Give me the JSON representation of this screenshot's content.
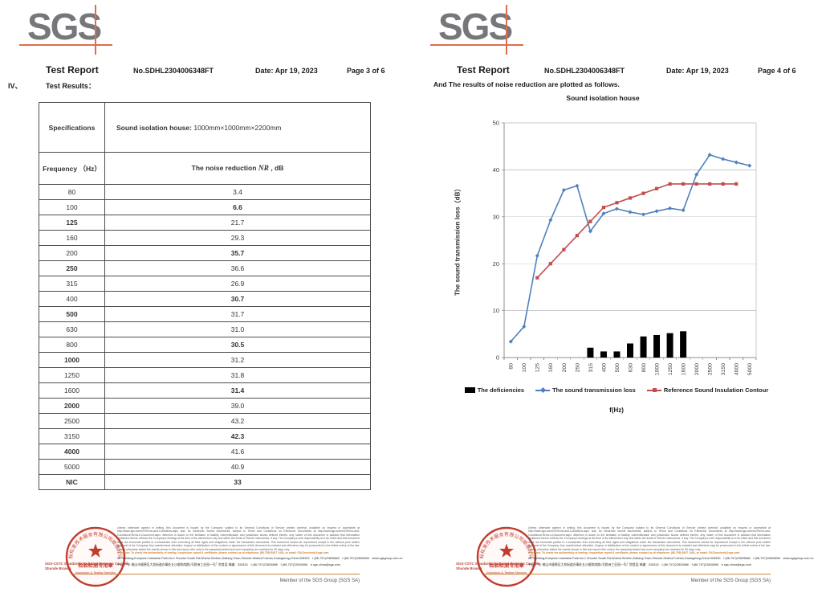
{
  "report": {
    "logo_text": "SGS",
    "title": "Test Report",
    "report_no": "No.SDHL2304006348FT",
    "date": "Date: Apr 19, 2023"
  },
  "page_left": {
    "page_label": "Page 3 of 6",
    "section_no": "IV、",
    "section_title": "Test Results：",
    "table": {
      "spec_label": "Specifications",
      "spec_value_bold": "Sound isolation house:",
      "spec_value_rest": " 1000mm×1000mm×2200mm",
      "freq_header": "Frequency （Hz）",
      "nr_prefix": "The noise reduction ",
      "nr_symbol": "NR",
      "nr_suffix": " , dB",
      "rows": [
        {
          "f": "80",
          "v": "3.4",
          "fb": false,
          "vb": false
        },
        {
          "f": "100",
          "v": "6.6",
          "fb": false,
          "vb": true
        },
        {
          "f": "125",
          "v": "21.7",
          "fb": true,
          "vb": false
        },
        {
          "f": "160",
          "v": "29.3",
          "fb": false,
          "vb": false
        },
        {
          "f": "200",
          "v": "35.7",
          "fb": false,
          "vb": true
        },
        {
          "f": "250",
          "v": "36.6",
          "fb": true,
          "vb": false
        },
        {
          "f": "315",
          "v": "26.9",
          "fb": false,
          "vb": false
        },
        {
          "f": "400",
          "v": "30.7",
          "fb": false,
          "vb": true
        },
        {
          "f": "500",
          "v": "31.7",
          "fb": true,
          "vb": false
        },
        {
          "f": "630",
          "v": "31.0",
          "fb": false,
          "vb": false
        },
        {
          "f": "800",
          "v": "30.5",
          "fb": false,
          "vb": true
        },
        {
          "f": "1000",
          "v": "31.2",
          "fb": true,
          "vb": false
        },
        {
          "f": "1250",
          "v": "31.8",
          "fb": false,
          "vb": false
        },
        {
          "f": "1600",
          "v": "31.4",
          "fb": false,
          "vb": true
        },
        {
          "f": "2000",
          "v": "39.0",
          "fb": true,
          "vb": false
        },
        {
          "f": "2500",
          "v": "43.2",
          "fb": false,
          "vb": false
        },
        {
          "f": "3150",
          "v": "42.3",
          "fb": false,
          "vb": true
        },
        {
          "f": "4000",
          "v": "41.6",
          "fb": true,
          "vb": false
        },
        {
          "f": "5000",
          "v": "40.9",
          "fb": false,
          "vb": false
        },
        {
          "f": "NIC",
          "v": "33",
          "fb": true,
          "vb": true
        }
      ]
    }
  },
  "page_right": {
    "page_label": "Page 4 of 6",
    "intro": "And The results of noise reduction are plotted as follows."
  },
  "chart_data": {
    "type": "line+bar",
    "title": "Sound isolation house",
    "xlabel": "f(Hz)",
    "ylabel": "The sound transmission loss（dB）",
    "ylim": [
      0,
      50
    ],
    "ytick_step": 10,
    "grid": "horizontal",
    "legend_position": "bottom",
    "categories": [
      "80",
      "100",
      "125",
      "160",
      "200",
      "250",
      "315",
      "400",
      "500",
      "630",
      "800",
      "1000",
      "1250",
      "1600",
      "2000",
      "2500",
      "3150",
      "4000",
      "5000"
    ],
    "series": [
      {
        "name": "The deficiencies",
        "type": "bar",
        "color": "#000000",
        "values": [
          null,
          null,
          null,
          null,
          null,
          null,
          2.1,
          1.3,
          1.3,
          3.0,
          4.5,
          4.8,
          5.2,
          5.6,
          null,
          null,
          null,
          null,
          null
        ]
      },
      {
        "name": "The sound transmission loss",
        "type": "line",
        "color": "#4f81bd",
        "marker": "diamond",
        "values": [
          3.4,
          6.6,
          21.7,
          29.3,
          35.7,
          36.6,
          26.9,
          30.7,
          31.7,
          31.0,
          30.5,
          31.2,
          31.8,
          31.4,
          39.0,
          43.2,
          42.3,
          41.6,
          40.9
        ]
      },
      {
        "name": "Reference Sound Insulation Contour",
        "type": "line",
        "color": "#c0504d",
        "marker": "square",
        "values": [
          null,
          null,
          17,
          20,
          23,
          26,
          29,
          32,
          33,
          34,
          35,
          36,
          37,
          37,
          37,
          37,
          37,
          37,
          null
        ]
      }
    ]
  },
  "footer": {
    "disclaimer": "Unless otherwise agreed in writing, this document is issued by the Company subject to its General Conditions of Service printed overleaf, available on request or accessible at http://www.sgs.com/en/Terms-and-Conditions.aspx and, for electronic format documents, subject to Terms and Conditions for Electronic Documents at http://www.sgs.com/en/Terms-and-Conditions/Terms-e-Document.aspx. Attention is drawn to the limitation of liability, indemnification and jurisdiction issues defined therein. Any holder of this document is advised that information contained hereon reflects the Company's findings at the time of its intervention only and within the limits of Client's instructions, if any. The Company's sole responsibility is to its Client and this document does not exonerate parties to a transaction from exercising all their rights and obligations under the transaction documents. This document cannot be reproduced except in full, without prior written approval of the Company. Any unauthorized alteration, forgery or falsification of the content or appearance of this document is unlawful and offenders may be prosecuted to the fullest extent of the law. Unless otherwise stated the results shown in this test report refer only to the sample(s) tested and such sample(s) are retained for 30 days only.",
    "attention": "Attention: To check the authenticity of testing / inspection report & certificate, please contact us at telephone: (86-755) 8307 1443, or email: CN.Doccheck@sgs.com",
    "address_en": "5/F Building,European Industrial Park,No.1 Shunhe South Rd,Wusha Section,Daliang Town,Shunde District,Foshan,Guangdong,China 528333　t (86-757)22805888　f (86-757)22805858　www.sgsgroup.com.cn",
    "address_cn": "中国·广东·佛山市顺德区大良街道办事处五沙顺和南路1号欧洲工业园一号厂房首层 邮编：528333　t (86-757)22805888　f (86-757)22805858　e sgs.china@sgs.com",
    "member_line": "Member of the SGS Group (SGS SA)",
    "stamp": {
      "ring_text": "通标标准技术服务有限公司顺德分公司",
      "line1": "检验检测专用章",
      "line2": "Inspection & Testing Services",
      "color": "#c23b2e"
    },
    "company_line1": "SGS-CSTC Standards Technical Services Co., Ltd.",
    "company_line2": "Shunde Branch"
  }
}
